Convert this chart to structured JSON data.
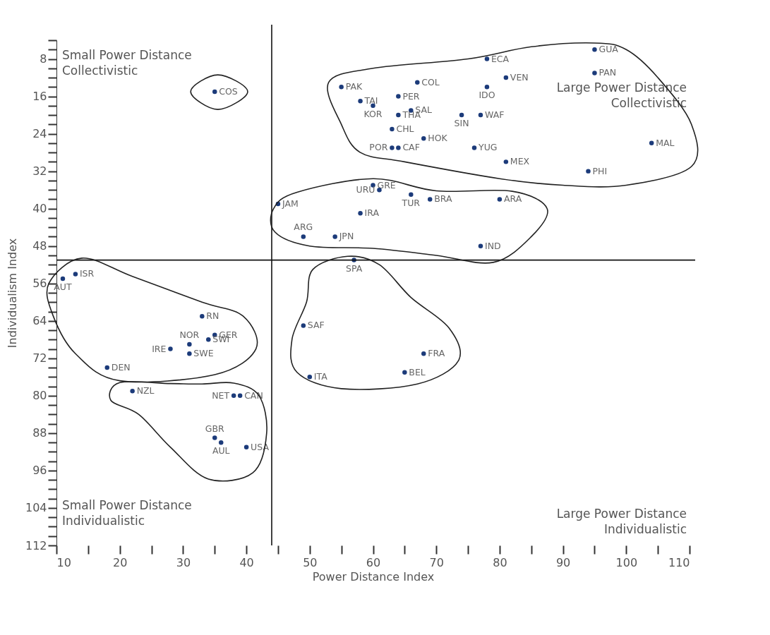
{
  "chart_data": {
    "type": "scatter",
    "xlabel": "Power Distance Index",
    "ylabel": "Individualism Index",
    "marker": "circle",
    "grid": false,
    "xlim": [
      10,
      110
    ],
    "ylim": [
      112,
      4
    ],
    "xticks": [
      10,
      {
        "value": 15,
        "label": null
      },
      20,
      {
        "value": 25,
        "label": null
      },
      30,
      {
        "value": 35,
        "label": null
      },
      40,
      {
        "value": 45,
        "label": null
      },
      50,
      {
        "value": 55,
        "label": null
      },
      60,
      {
        "value": 65,
        "label": null
      },
      70,
      {
        "value": 75,
        "label": null
      },
      80,
      {
        "value": 85,
        "label": null
      },
      90,
      {
        "value": 95,
        "label": null
      },
      100,
      {
        "value": 105,
        "label": null
      },
      110
    ],
    "yticks": [
      {
        "value": 4,
        "label": null
      },
      {
        "value": 6,
        "label": null
      },
      8,
      {
        "value": 10,
        "label": null
      },
      {
        "value": 12,
        "label": null
      },
      {
        "value": 14,
        "label": null
      },
      16,
      {
        "value": 18,
        "label": null
      },
      {
        "value": 20,
        "label": null
      },
      {
        "value": 22,
        "label": null
      },
      24,
      {
        "value": 26,
        "label": null
      },
      {
        "value": 28,
        "label": null
      },
      {
        "value": 30,
        "label": null
      },
      32,
      {
        "value": 34,
        "label": null
      },
      {
        "value": 36,
        "label": null
      },
      {
        "value": 38,
        "label": null
      },
      40,
      {
        "value": 42,
        "label": null
      },
      {
        "value": 44,
        "label": null
      },
      {
        "value": 46,
        "label": null
      },
      48,
      {
        "value": 50,
        "label": null
      },
      {
        "value": 52,
        "label": null
      },
      {
        "value": 54,
        "label": null
      },
      56,
      {
        "value": 58,
        "label": null
      },
      {
        "value": 60,
        "label": null
      },
      {
        "value": 62,
        "label": null
      },
      64,
      {
        "value": 66,
        "label": null
      },
      {
        "value": 68,
        "label": null
      },
      {
        "value": 70,
        "label": null
      },
      72,
      {
        "value": 74,
        "label": null
      },
      {
        "value": 76,
        "label": null
      },
      {
        "value": 78,
        "label": null
      },
      80,
      {
        "value": 82,
        "label": null
      },
      {
        "value": 84,
        "label": null
      },
      {
        "value": 86,
        "label": null
      },
      88,
      {
        "value": 90,
        "label": null
      },
      {
        "value": 92,
        "label": null
      },
      {
        "value": 94,
        "label": null
      },
      96,
      {
        "value": 98,
        "label": null
      },
      {
        "value": 100,
        "label": null
      },
      {
        "value": 102,
        "label": null
      },
      104,
      {
        "value": 106,
        "label": null
      },
      {
        "value": 108,
        "label": null
      },
      {
        "value": 110,
        "label": null
      },
      112
    ],
    "ref_lines": [
      {
        "axis": "x",
        "value": 44
      },
      {
        "axis": "y",
        "value": 51
      }
    ],
    "annotations": [
      "Small Power Distance\nCollectivistic",
      "Large Power Distance\nCollectivistic",
      "Small Power Distance\nIndividualistic",
      "Large Power Distance\nIndividualistic"
    ],
    "series": [
      {
        "name": "GUA",
        "color": "#1c3b7a",
        "x": [
          95
        ],
        "values": [
          6
        ]
      },
      {
        "name": "PAN",
        "color": "#1c3b7a",
        "x": [
          95
        ],
        "values": [
          11
        ]
      },
      {
        "name": "ECA",
        "color": "#1c3b7a",
        "x": [
          78
        ],
        "values": [
          8
        ]
      },
      {
        "name": "VEN",
        "color": "#1c3b7a",
        "x": [
          81
        ],
        "values": [
          12
        ]
      },
      {
        "name": "COL",
        "color": "#1c3b7a",
        "x": [
          67
        ],
        "values": [
          13
        ]
      },
      {
        "name": "PAK",
        "color": "#1c3b7a",
        "x": [
          55
        ],
        "values": [
          14
        ]
      },
      {
        "name": "IDO",
        "color": "#1c3b7a",
        "x": [
          78
        ],
        "values": [
          14
        ]
      },
      {
        "name": "PER",
        "color": "#1c3b7a",
        "x": [
          64
        ],
        "values": [
          16
        ]
      },
      {
        "name": "TAI",
        "color": "#1c3b7a",
        "x": [
          58
        ],
        "values": [
          17
        ]
      },
      {
        "name": "COS",
        "color": "#1c3b7a",
        "x": [
          35
        ],
        "values": [
          15
        ]
      },
      {
        "name": "KOR",
        "color": "#1c3b7a",
        "x": [
          60
        ],
        "values": [
          18
        ]
      },
      {
        "name": "SAL",
        "color": "#1c3b7a",
        "x": [
          66
        ],
        "values": [
          19
        ]
      },
      {
        "name": "THA",
        "color": "#1c3b7a",
        "x": [
          64
        ],
        "values": [
          20
        ]
      },
      {
        "name": "CHL",
        "color": "#1c3b7a",
        "x": [
          63
        ],
        "values": [
          23
        ]
      },
      {
        "name": "SIN",
        "color": "#1c3b7a",
        "x": [
          74
        ],
        "values": [
          20
        ]
      },
      {
        "name": "WAF",
        "color": "#1c3b7a",
        "x": [
          77
        ],
        "values": [
          20
        ]
      },
      {
        "name": "HOK",
        "color": "#1c3b7a",
        "x": [
          68
        ],
        "values": [
          25
        ]
      },
      {
        "name": "POR",
        "color": "#1c3b7a",
        "x": [
          63
        ],
        "values": [
          27
        ]
      },
      {
        "name": "CAF",
        "color": "#1c3b7a",
        "x": [
          64
        ],
        "values": [
          27
        ]
      },
      {
        "name": "YUG",
        "color": "#1c3b7a",
        "x": [
          76
        ],
        "values": [
          27
        ]
      },
      {
        "name": "MAL",
        "color": "#1c3b7a",
        "x": [
          104
        ],
        "values": [
          26
        ]
      },
      {
        "name": "MEX",
        "color": "#1c3b7a",
        "x": [
          81
        ],
        "values": [
          30
        ]
      },
      {
        "name": "PHI",
        "color": "#1c3b7a",
        "x": [
          94
        ],
        "values": [
          32
        ]
      },
      {
        "name": "GRE",
        "color": "#1c3b7a",
        "x": [
          60
        ],
        "values": [
          35
        ]
      },
      {
        "name": "URU",
        "color": "#1c3b7a",
        "x": [
          61
        ],
        "values": [
          36
        ]
      },
      {
        "name": "TUR",
        "color": "#1c3b7a",
        "x": [
          66
        ],
        "values": [
          37
        ]
      },
      {
        "name": "BRA",
        "color": "#1c3b7a",
        "x": [
          69
        ],
        "values": [
          38
        ]
      },
      {
        "name": "ARA",
        "color": "#1c3b7a",
        "x": [
          80
        ],
        "values": [
          38
        ]
      },
      {
        "name": "JAM",
        "color": "#1c3b7a",
        "x": [
          45
        ],
        "values": [
          39
        ]
      },
      {
        "name": "IRA",
        "color": "#1c3b7a",
        "x": [
          58
        ],
        "values": [
          41
        ]
      },
      {
        "name": "ARG",
        "color": "#1c3b7a",
        "x": [
          49
        ],
        "values": [
          46
        ]
      },
      {
        "name": "JPN",
        "color": "#1c3b7a",
        "x": [
          54
        ],
        "values": [
          46
        ]
      },
      {
        "name": "IND",
        "color": "#1c3b7a",
        "x": [
          77
        ],
        "values": [
          48
        ]
      },
      {
        "name": "SPA",
        "color": "#1c3b7a",
        "x": [
          57
        ],
        "values": [
          51
        ]
      },
      {
        "name": "AUT",
        "color": "#1c3b7a",
        "x": [
          11
        ],
        "values": [
          55
        ]
      },
      {
        "name": "ISR",
        "color": "#1c3b7a",
        "x": [
          13
        ],
        "values": [
          54
        ]
      },
      {
        "name": "RN",
        "color": "#1c3b7a",
        "x": [
          33
        ],
        "values": [
          63
        ]
      },
      {
        "name": "SAF",
        "color": "#1c3b7a",
        "x": [
          49
        ],
        "values": [
          65
        ]
      },
      {
        "name": "GER",
        "color": "#1c3b7a",
        "x": [
          35
        ],
        "values": [
          67
        ]
      },
      {
        "name": "SWI",
        "color": "#1c3b7a",
        "x": [
          34
        ],
        "values": [
          68
        ]
      },
      {
        "name": "NOR",
        "color": "#1c3b7a",
        "x": [
          31
        ],
        "values": [
          69
        ]
      },
      {
        "name": "IRE",
        "color": "#1c3b7a",
        "x": [
          28
        ],
        "values": [
          70
        ]
      },
      {
        "name": "SWE",
        "color": "#1c3b7a",
        "x": [
          31
        ],
        "values": [
          71
        ]
      },
      {
        "name": "FRA",
        "color": "#1c3b7a",
        "x": [
          68
        ],
        "values": [
          71
        ]
      },
      {
        "name": "DEN",
        "color": "#1c3b7a",
        "x": [
          18
        ],
        "values": [
          74
        ]
      },
      {
        "name": "BEL",
        "color": "#1c3b7a",
        "x": [
          65
        ],
        "values": [
          75
        ]
      },
      {
        "name": "ITA",
        "color": "#1c3b7a",
        "x": [
          50
        ],
        "values": [
          76
        ]
      },
      {
        "name": "NZL",
        "color": "#1c3b7a",
        "x": [
          22
        ],
        "values": [
          79
        ]
      },
      {
        "name": "NET",
        "color": "#1c3b7a",
        "x": [
          38
        ],
        "values": [
          80
        ]
      },
      {
        "name": "CAN",
        "color": "#1c3b7a",
        "x": [
          39
        ],
        "values": [
          80
        ]
      },
      {
        "name": "GBR",
        "color": "#1c3b7a",
        "x": [
          35
        ],
        "values": [
          89
        ]
      },
      {
        "name": "AUL",
        "color": "#1c3b7a",
        "x": [
          36
        ],
        "values": [
          90
        ]
      },
      {
        "name": "USA",
        "color": "#1c3b7a",
        "x": [
          40
        ],
        "values": [
          91
        ]
      }
    ]
  }
}
